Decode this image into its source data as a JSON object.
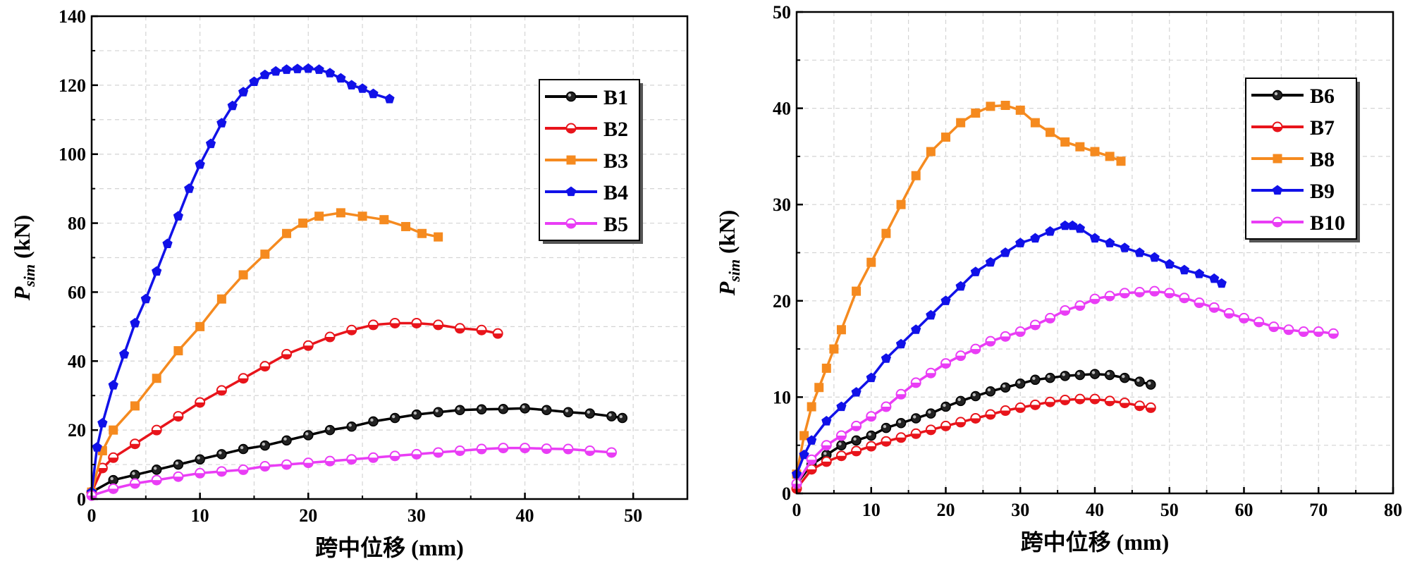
{
  "chart_data": [
    {
      "type": "line",
      "xlabel": "跨中位移 (mm)",
      "ylabel": "P",
      "ylabel_sub": "sim",
      "ylabel_unit": " (kN)",
      "xlim": [
        0,
        55
      ],
      "ylim": [
        0,
        140
      ],
      "xticks": [
        0,
        10,
        20,
        30,
        40,
        50
      ],
      "yticks": [
        0,
        20,
        40,
        60,
        80,
        100,
        120,
        140
      ],
      "legend_position": "top-right",
      "series": [
        {
          "name": "B1",
          "color": "#000000",
          "marker": "circle",
          "x": [
            0,
            2,
            4,
            6,
            8,
            10,
            12,
            14,
            16,
            18,
            20,
            22,
            24,
            26,
            28,
            30,
            32,
            34,
            36,
            38,
            40,
            42,
            44,
            46,
            48,
            49
          ],
          "y": [
            2,
            5.5,
            7,
            8.5,
            10,
            11.5,
            13,
            14.5,
            15.5,
            17,
            18.5,
            20,
            21,
            22.5,
            23.5,
            24.5,
            25.2,
            25.8,
            26,
            26.1,
            26.3,
            25.8,
            25.2,
            24.8,
            24,
            23.5
          ]
        },
        {
          "name": "B2",
          "color": "#e8141b",
          "marker": "circle-half",
          "x": [
            0,
            1,
            2,
            4,
            6,
            8,
            10,
            12,
            14,
            16,
            18,
            20,
            22,
            24,
            26,
            28,
            30,
            32,
            34,
            36,
            37.5
          ],
          "y": [
            2,
            9,
            12,
            16,
            20,
            24,
            28,
            31.5,
            35,
            38.5,
            42,
            44.5,
            47,
            49,
            50.5,
            51,
            51,
            50.5,
            49.5,
            49,
            48
          ]
        },
        {
          "name": "B3",
          "color": "#f58a1f",
          "marker": "square",
          "x": [
            0,
            1,
            2,
            4,
            6,
            8,
            10,
            12,
            14,
            16,
            18,
            19.5,
            21,
            23,
            25,
            27,
            29,
            30.5,
            32
          ],
          "y": [
            2,
            14,
            20,
            27,
            35,
            43,
            50,
            58,
            65,
            71,
            77,
            80,
            82,
            83,
            82,
            81,
            79,
            77,
            76
          ]
        },
        {
          "name": "B4",
          "color": "#1111e8",
          "marker": "pentagon",
          "x": [
            0,
            0.5,
            1,
            2,
            3,
            4,
            5,
            6,
            7,
            8,
            9,
            10,
            11,
            12,
            13,
            14,
            15,
            16,
            17,
            18,
            19,
            20,
            21,
            22,
            23,
            24,
            25,
            26,
            27.5
          ],
          "y": [
            2,
            15,
            22,
            33,
            42,
            51,
            58,
            66,
            74,
            82,
            90,
            97,
            103,
            109,
            114,
            118,
            121,
            123,
            124,
            124.5,
            124.7,
            124.8,
            124.5,
            123.5,
            122,
            120,
            119,
            117.5,
            116
          ]
        },
        {
          "name": "B5",
          "color": "#e93df5",
          "marker": "circle-half",
          "x": [
            0,
            2,
            4,
            6,
            8,
            10,
            12,
            14,
            16,
            18,
            20,
            22,
            24,
            26,
            28,
            30,
            32,
            34,
            36,
            38,
            40,
            42,
            44,
            46,
            48
          ],
          "y": [
            1,
            3,
            4.5,
            5.5,
            6.5,
            7.5,
            8,
            8.5,
            9.5,
            10,
            10.5,
            11,
            11.5,
            12,
            12.5,
            13,
            13.5,
            14,
            14.5,
            14.8,
            14.8,
            14.6,
            14.5,
            14,
            13.5
          ]
        }
      ]
    },
    {
      "type": "line",
      "xlabel": "跨中位移 (mm)",
      "ylabel": "P",
      "ylabel_sub": "sim",
      "ylabel_unit": " (kN)",
      "xlim": [
        0,
        80
      ],
      "ylim": [
        0,
        50
      ],
      "xticks": [
        0,
        10,
        20,
        30,
        40,
        50,
        60,
        70,
        80
      ],
      "yticks": [
        0,
        10,
        20,
        30,
        40,
        50
      ],
      "legend_position": "top-right",
      "series": [
        {
          "name": "B6",
          "color": "#000000",
          "marker": "circle",
          "x": [
            0,
            2,
            4,
            6,
            8,
            10,
            12,
            14,
            16,
            18,
            20,
            22,
            24,
            26,
            28,
            30,
            32,
            34,
            36,
            38,
            40,
            42,
            44,
            46,
            47.5
          ],
          "y": [
            1,
            3,
            4,
            5,
            5.5,
            6,
            6.8,
            7.3,
            7.8,
            8.3,
            9,
            9.6,
            10.1,
            10.6,
            11,
            11.4,
            11.8,
            12,
            12.2,
            12.3,
            12.4,
            12.3,
            12,
            11.6,
            11.3
          ]
        },
        {
          "name": "B7",
          "color": "#e8141b",
          "marker": "circle-half",
          "x": [
            0,
            2,
            4,
            6,
            8,
            10,
            12,
            14,
            16,
            18,
            20,
            22,
            24,
            26,
            28,
            30,
            32,
            34,
            36,
            38,
            40,
            42,
            44,
            46,
            47.5
          ],
          "y": [
            0.5,
            2.5,
            3.3,
            3.9,
            4.4,
            4.9,
            5.4,
            5.8,
            6.2,
            6.6,
            7,
            7.4,
            7.8,
            8.2,
            8.6,
            8.9,
            9.2,
            9.5,
            9.7,
            9.8,
            9.8,
            9.6,
            9.4,
            9.1,
            8.9
          ]
        },
        {
          "name": "B8",
          "color": "#f58a1f",
          "marker": "square",
          "x": [
            0,
            1,
            2,
            3,
            4,
            5,
            6,
            8,
            10,
            12,
            14,
            16,
            18,
            20,
            22,
            24,
            26,
            28,
            30,
            32,
            34,
            36,
            38,
            40,
            42,
            43.5
          ],
          "y": [
            2,
            6,
            9,
            11,
            13,
            15,
            17,
            21,
            24,
            27,
            30,
            33,
            35.5,
            37,
            38.5,
            39.5,
            40.2,
            40.3,
            39.8,
            38.5,
            37.5,
            36.5,
            36,
            35.5,
            35,
            34.5
          ]
        },
        {
          "name": "B9",
          "color": "#1111e8",
          "marker": "pentagon",
          "x": [
            0,
            1,
            2,
            4,
            6,
            8,
            10,
            12,
            14,
            16,
            18,
            20,
            22,
            24,
            26,
            28,
            30,
            32,
            34,
            36,
            37,
            38,
            40,
            42,
            44,
            46,
            48,
            50,
            52,
            54,
            56,
            57
          ],
          "y": [
            2,
            4,
            5.5,
            7.5,
            9,
            10.5,
            12,
            14,
            15.5,
            17,
            18.5,
            20,
            21.5,
            23,
            24,
            25,
            26,
            26.5,
            27.2,
            27.8,
            27.8,
            27.5,
            26.5,
            26,
            25.5,
            25,
            24.5,
            23.8,
            23.2,
            22.8,
            22.3,
            21.8
          ]
        },
        {
          "name": "B10",
          "color": "#e93df5",
          "marker": "circle-half",
          "x": [
            0,
            2,
            4,
            6,
            8,
            10,
            12,
            14,
            16,
            18,
            20,
            22,
            24,
            26,
            28,
            30,
            32,
            34,
            36,
            38,
            40,
            42,
            44,
            46,
            48,
            50,
            52,
            54,
            56,
            58,
            60,
            62,
            64,
            66,
            68,
            70,
            72
          ],
          "y": [
            1,
            3.5,
            5,
            6,
            7,
            8,
            9,
            10.3,
            11.5,
            12.5,
            13.5,
            14.3,
            15,
            15.8,
            16.3,
            16.8,
            17.5,
            18.2,
            19,
            19.5,
            20.2,
            20.5,
            20.8,
            20.9,
            21,
            20.8,
            20.3,
            19.8,
            19.3,
            18.7,
            18.2,
            17.8,
            17.3,
            17,
            16.8,
            16.8,
            16.6
          ]
        }
      ]
    }
  ]
}
